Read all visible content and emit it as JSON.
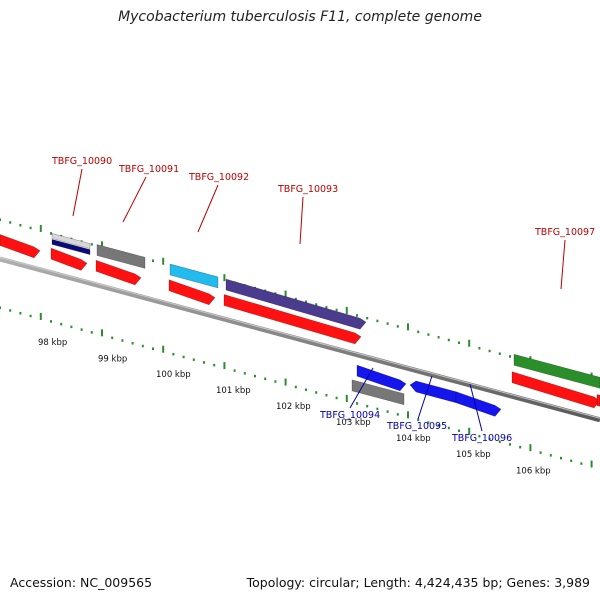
{
  "title": "Mycobacterium tuberculosis F11, complete genome",
  "footer": {
    "accession": "Accession: NC_009565",
    "summary": "Topology: circular; Length: 4,424,435 bp; Genes: 3,989"
  },
  "colors": {
    "backbone": "#8a8a8a",
    "tick_green": "#2e8b2e",
    "cds_red": "#ff1111",
    "label_top": "#bb0000",
    "label_bottom": "#0000aa"
  },
  "kbp_labels": [
    "98 kbp",
    "99 kbp",
    "100 kbp",
    "101 kbp",
    "102 kbp",
    "103 kbp",
    "104 kbp",
    "105 kbp",
    "106 kbp"
  ],
  "genes_top": [
    {
      "id": "TBFG_10090",
      "label": "TBFG_10090",
      "color": "#0a0a7a",
      "color2": "#d8d8d8"
    },
    {
      "id": "TBFG_10091",
      "label": "TBFG_10091",
      "color": "#777777"
    },
    {
      "id": "TBFG_10092",
      "label": "TBFG_10092",
      "color": "#22bbee"
    },
    {
      "id": "TBFG_10093",
      "label": "TBFG_10093",
      "color": "#4b3b8f"
    },
    {
      "id": "TBFG_10097",
      "label": "TBFG_10097",
      "color": "#2a8f2a"
    }
  ],
  "genes_bottom": [
    {
      "id": "TBFG_10094",
      "label": "TBFG_10094",
      "color": "#777777"
    },
    {
      "id": "TBFG_10095",
      "label": "TBFG_10095",
      "color": "#1515ee"
    },
    {
      "id": "TBFG_10096",
      "label": "TBFG_10096",
      "color": "#1515ee"
    }
  ]
}
